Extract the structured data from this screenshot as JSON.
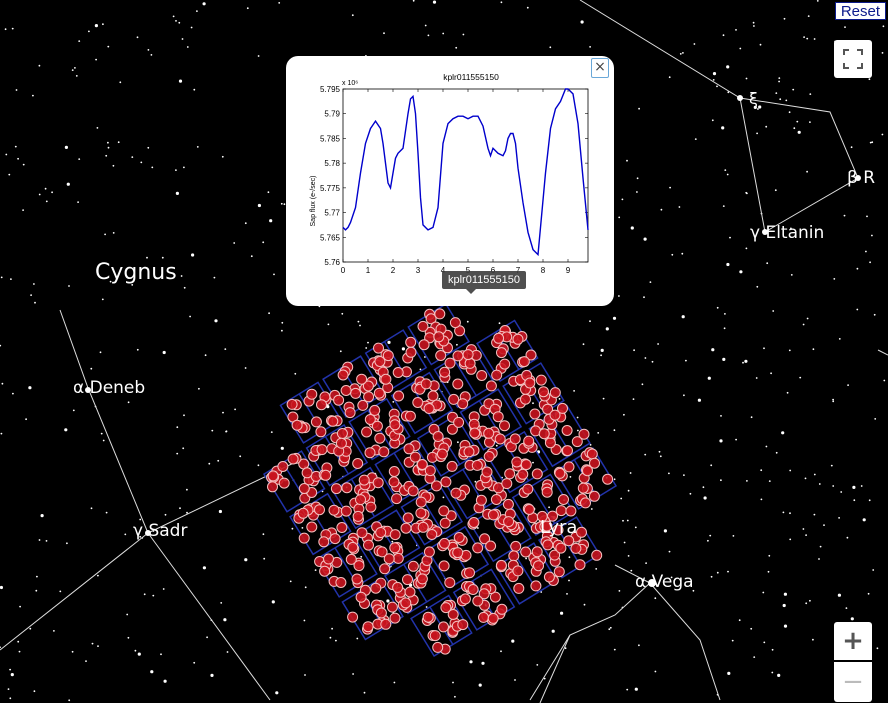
{
  "controls": {
    "reset_label": "Reset",
    "zoom_in_label": "+",
    "zoom_out_label": "−"
  },
  "labels": [
    {
      "id": "cygnus",
      "text": "Cygnus"
    },
    {
      "id": "deneb",
      "text": "α Deneb"
    },
    {
      "id": "sadr",
      "text": "γ Sadr"
    },
    {
      "id": "vega",
      "text": "α Vega"
    },
    {
      "id": "lyra",
      "text": "Lyra"
    },
    {
      "id": "eltanin",
      "text": "γ Eltanin"
    },
    {
      "id": "xi",
      "text": "ξ"
    },
    {
      "id": "beta",
      "text": "β R"
    }
  ],
  "popup": {
    "close_label": "×",
    "tooltip": "kplr011555150",
    "chart_data": {
      "type": "line",
      "title": "kplr011555150",
      "xlabel": "",
      "ylabel": "Sap flux (e-/sec)",
      "y_scale_note": "x 10⁶",
      "xlim": [
        0,
        9.8
      ],
      "ylim": [
        5.76,
        5.795
      ],
      "x_ticks": [
        0,
        1,
        2,
        3,
        4,
        5,
        6,
        7,
        8,
        9
      ],
      "y_ticks": [
        5.76,
        5.765,
        5.77,
        5.775,
        5.78,
        5.785,
        5.79,
        5.795
      ],
      "y_tick_labels": [
        "5.76",
        "5.765",
        "5.77",
        "5.775",
        "5.78",
        "5.785",
        "5.79",
        "5.795"
      ],
      "series": [
        {
          "color": "#0000cc",
          "x": [
            0,
            0.1,
            0.2,
            0.3,
            0.5,
            0.7,
            0.9,
            1.1,
            1.3,
            1.5,
            1.6,
            1.8,
            1.9,
            2.0,
            2.1,
            2.2,
            2.4,
            2.6,
            2.7,
            2.8,
            2.9,
            3.0,
            3.1,
            3.2,
            3.4,
            3.6,
            3.8,
            4.0,
            4.2,
            4.4,
            4.6,
            4.8,
            5.0,
            5.2,
            5.4,
            5.6,
            5.8,
            5.9,
            6.0,
            6.2,
            6.4,
            6.5,
            6.6,
            6.7,
            6.8,
            6.9,
            7.0,
            7.2,
            7.4,
            7.6,
            7.8,
            7.9,
            8.1,
            8.3,
            8.5,
            8.7,
            8.9,
            9.0,
            9.2,
            9.4,
            9.6,
            9.8
          ],
          "y": [
            5.767,
            5.7665,
            5.767,
            5.768,
            5.771,
            5.778,
            5.784,
            5.787,
            5.7885,
            5.787,
            5.784,
            5.776,
            5.775,
            5.778,
            5.781,
            5.782,
            5.783,
            5.79,
            5.793,
            5.7935,
            5.79,
            5.782,
            5.773,
            5.7675,
            5.7665,
            5.767,
            5.771,
            5.784,
            5.788,
            5.789,
            5.7895,
            5.7895,
            5.789,
            5.7895,
            5.7895,
            5.7875,
            5.783,
            5.7815,
            5.783,
            5.782,
            5.7815,
            5.7825,
            5.785,
            5.786,
            5.786,
            5.784,
            5.779,
            5.772,
            5.766,
            5.7625,
            5.7615,
            5.767,
            5.778,
            5.787,
            5.791,
            5.7925,
            5.795,
            5.795,
            5.794,
            5.788,
            5.777,
            5.7665
          ]
        }
      ]
    }
  }
}
